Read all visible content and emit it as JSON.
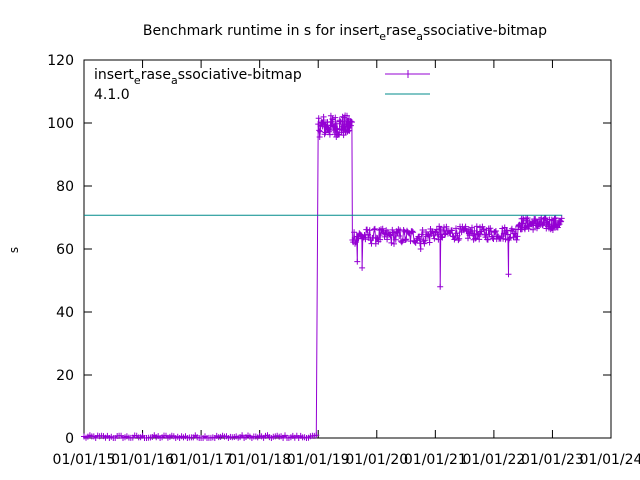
{
  "chart_data": {
    "type": "line",
    "title": {
      "part1": "Benchmark runtime in s for insert",
      "sub1": "e",
      "part2": "rase",
      "sub2": "a",
      "part3": "ssociative-bitmap"
    },
    "ylabel": "s",
    "xlabel": "",
    "ylim": [
      0,
      120
    ],
    "yticks": [
      "0",
      "20",
      "40",
      "60",
      "80",
      "100",
      "120"
    ],
    "xticks": [
      "01/01/15",
      "01/01/16",
      "01/01/17",
      "01/01/18",
      "01/01/19",
      "01/01/20",
      "01/01/21",
      "01/01/22",
      "01/01/23",
      "01/01/24"
    ],
    "grid": false,
    "legend_position": "top-left",
    "series": [
      {
        "name": {
          "part1": "insert",
          "sub1": "e",
          "part2": "rase",
          "sub2": "a",
          "part3": "ssociative-bitmap"
        },
        "color": "#9400d3",
        "marker": "plus",
        "segments": [
          {
            "start": "01/01/15",
            "end": "01/01/19",
            "base": 0.3,
            "noise": 0.6,
            "n": 120
          },
          {
            "start": "01/01/19",
            "end": "01/08/19",
            "base": 99,
            "noise": 3.5,
            "n": 70
          },
          {
            "start": "01/08/19",
            "end": "01/12/20",
            "base": 64,
            "noise": 2.5,
            "n": 90
          },
          {
            "start": "01/12/20",
            "end": "01/06/22",
            "base": 65,
            "noise": 2.2,
            "n": 110
          },
          {
            "start": "01/06/22",
            "end": "01/03/23",
            "base": 68,
            "noise": 2.0,
            "n": 80
          }
        ],
        "spikes": [
          {
            "x": "01/09/19",
            "y": 56
          },
          {
            "x": "01/10/19",
            "y": 54
          },
          {
            "x": "01/02/21",
            "y": 48
          },
          {
            "x": "01/04/22",
            "y": 52
          },
          {
            "x": "01/10/20",
            "y": 60
          }
        ]
      },
      {
        "name": "4.1.0",
        "color": "#008b8b",
        "marker": "none",
        "values": [
          {
            "x": "01/01/15",
            "y": 70.7
          },
          {
            "x": "01/03/23",
            "y": 70.7
          }
        ]
      }
    ]
  }
}
